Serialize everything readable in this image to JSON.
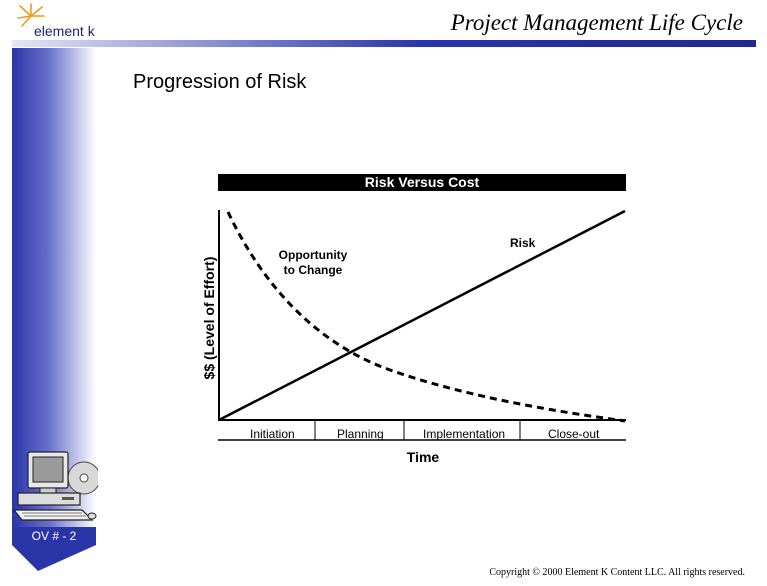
{
  "header": {
    "logo_text": "element k",
    "title": "Project Management Life Cycle"
  },
  "slide": {
    "heading": "Progression of Risk",
    "number": "OV # - 2",
    "copyright": "Copyright © 2000 Element K Content LLC. All rights reserved."
  },
  "chart": {
    "title": "Risk Versus Cost",
    "ylabel": "$$ (Level of Effort)",
    "xlabel": "Time",
    "phases": [
      "Initiation",
      "Planning",
      "Implementation",
      "Close-out"
    ],
    "risk_label": "Risk",
    "opportunity_label_line1": "Opportunity",
    "opportunity_label_line2": "to Change"
  },
  "colors": {
    "brand_blue": "#2a35a8",
    "orange_star": "#f39a1e"
  },
  "icons": {
    "logo": "starburst-icon",
    "computer": "computer-cd-icon"
  }
}
